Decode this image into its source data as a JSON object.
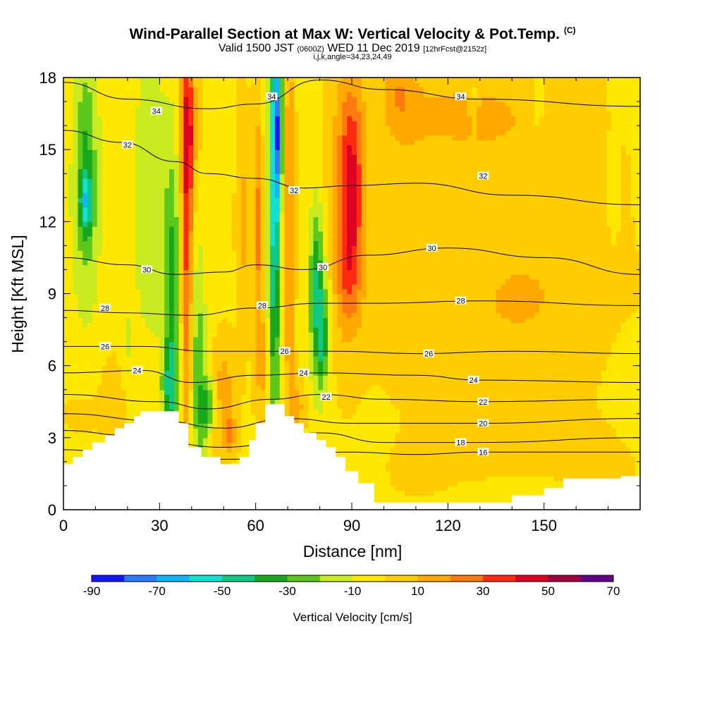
{
  "title": {
    "main": "Wind-Parallel Section at Max W: Vertical Velocity & Pot.Temp.",
    "copyright": "(C)",
    "valid_prefix": "Valid 1500 JST",
    "valid_utc": "(0600Z)",
    "valid_date": "WED 11 Dec 2019",
    "forecast": "[12hrFcst@2152z]",
    "indices": "i,j,k,angle=34,23,24,49"
  },
  "chart_data": {
    "type": "heatmap",
    "xlabel": "Distance [nm]",
    "ylabel": "Height [Kft MSL]",
    "xlim": [
      0,
      180
    ],
    "ylim": [
      0,
      18
    ],
    "x_ticks": [
      0,
      30,
      60,
      90,
      120,
      150
    ],
    "y_ticks": [
      0,
      3,
      6,
      9,
      12,
      15,
      18
    ],
    "grid": false,
    "colorbar": {
      "label": "Vertical Velocity [cm/s]",
      "ticks": [
        -90,
        -70,
        -50,
        -30,
        -10,
        10,
        30,
        50,
        70
      ],
      "boundaries": [
        -90,
        -80,
        -70,
        -60,
        -50,
        -40,
        -30,
        -20,
        -10,
        0,
        10,
        20,
        30,
        40,
        50,
        60,
        70
      ],
      "colors": [
        "#1414ff",
        "#2b7bff",
        "#10b7f5",
        "#12e0d0",
        "#0fc883",
        "#18a81e",
        "#5cc81c",
        "#c8ea1e",
        "#ffe800",
        "#ffcc00",
        "#ffa800",
        "#ff7a10",
        "#ff2a10",
        "#dd0022",
        "#a00040",
        "#660088"
      ]
    },
    "contour_field": "Potential Temperature",
    "contour_levels": [
      16,
      18,
      20,
      22,
      24,
      26,
      28,
      30,
      32,
      34
    ],
    "contour_lines": [
      {
        "level": 34,
        "points": [
          [
            0,
            17.8
          ],
          [
            20,
            17.1
          ],
          [
            45,
            16.7
          ],
          [
            60,
            16.9
          ],
          [
            80,
            17.9
          ],
          [
            100,
            17.5
          ],
          [
            130,
            17.1
          ],
          [
            180,
            16.8
          ]
        ]
      },
      {
        "level": 32,
        "points": [
          [
            0,
            15.8
          ],
          [
            18,
            15.3
          ],
          [
            35,
            14.5
          ],
          [
            45,
            14.0
          ],
          [
            60,
            13.8
          ],
          [
            75,
            13.4
          ],
          [
            90,
            13.5
          ],
          [
            110,
            13.6
          ],
          [
            140,
            13.1
          ],
          [
            180,
            12.7
          ]
        ]
      },
      {
        "level": 30,
        "points": [
          [
            0,
            10.5
          ],
          [
            20,
            10.2
          ],
          [
            35,
            9.8
          ],
          [
            50,
            9.9
          ],
          [
            60,
            10.2
          ],
          [
            75,
            10.0
          ],
          [
            95,
            10.6
          ],
          [
            120,
            10.9
          ],
          [
            150,
            10.5
          ],
          [
            180,
            9.8
          ]
        ]
      },
      {
        "level": 28,
        "points": [
          [
            0,
            8.3
          ],
          [
            20,
            8.2
          ],
          [
            40,
            8.1
          ],
          [
            60,
            8.4
          ],
          [
            80,
            8.6
          ],
          [
            100,
            8.6
          ],
          [
            130,
            8.7
          ],
          [
            180,
            8.5
          ]
        ]
      },
      {
        "level": 26,
        "points": [
          [
            0,
            6.8
          ],
          [
            25,
            6.8
          ],
          [
            45,
            6.6
          ],
          [
            65,
            6.6
          ],
          [
            85,
            6.6
          ],
          [
            110,
            6.5
          ],
          [
            140,
            6.6
          ],
          [
            180,
            6.5
          ]
        ]
      },
      {
        "level": 24,
        "points": [
          [
            0,
            5.7
          ],
          [
            25,
            5.8
          ],
          [
            40,
            5.3
          ],
          [
            60,
            5.6
          ],
          [
            80,
            5.7
          ],
          [
            110,
            5.6
          ],
          [
            130,
            5.4
          ],
          [
            180,
            5.3
          ]
        ]
      },
      {
        "level": 22,
        "points": [
          [
            0,
            4.8
          ],
          [
            30,
            4.5
          ],
          [
            45,
            4.2
          ],
          [
            65,
            4.6
          ],
          [
            80,
            4.8
          ],
          [
            100,
            4.6
          ],
          [
            130,
            4.5
          ],
          [
            180,
            4.6
          ]
        ]
      },
      {
        "level": 20,
        "points": [
          [
            0,
            4.0
          ],
          [
            30,
            3.7
          ],
          [
            50,
            3.4
          ],
          [
            70,
            3.8
          ],
          [
            90,
            3.6
          ],
          [
            110,
            3.6
          ],
          [
            130,
            3.6
          ],
          [
            180,
            3.8
          ]
        ]
      },
      {
        "level": 18,
        "points": [
          [
            0,
            3.3
          ],
          [
            20,
            3.1
          ],
          [
            50,
            2.6
          ],
          [
            80,
            3.2
          ],
          [
            100,
            2.8
          ],
          [
            130,
            2.8
          ],
          [
            180,
            3.0
          ]
        ]
      },
      {
        "level": 16,
        "points": [
          [
            0,
            2.5
          ],
          [
            20,
            2.3
          ],
          [
            50,
            2.1
          ],
          [
            90,
            2.4
          ],
          [
            110,
            2.3
          ],
          [
            130,
            2.4
          ],
          [
            180,
            2.4
          ]
        ]
      }
    ],
    "contour_labels": [
      {
        "text": "34",
        "x": 29,
        "y": 16.6
      },
      {
        "text": "34",
        "x": 65,
        "y": 17.2
      },
      {
        "text": "34",
        "x": 124,
        "y": 17.2
      },
      {
        "text": "32",
        "x": 20,
        "y": 15.2
      },
      {
        "text": "32",
        "x": 72,
        "y": 13.3
      },
      {
        "text": "32",
        "x": 131,
        "y": 13.9
      },
      {
        "text": "30",
        "x": 26,
        "y": 10.0
      },
      {
        "text": "30",
        "x": 81,
        "y": 10.1
      },
      {
        "text": "30",
        "x": 115,
        "y": 10.9
      },
      {
        "text": "28",
        "x": 13,
        "y": 8.4
      },
      {
        "text": "28",
        "x": 62,
        "y": 8.5
      },
      {
        "text": "28",
        "x": 124,
        "y": 8.7
      },
      {
        "text": "26",
        "x": 13,
        "y": 6.8
      },
      {
        "text": "26",
        "x": 69,
        "y": 6.6
      },
      {
        "text": "26",
        "x": 114,
        "y": 6.5
      },
      {
        "text": "24",
        "x": 23,
        "y": 5.8
      },
      {
        "text": "24",
        "x": 75,
        "y": 5.7
      },
      {
        "text": "24",
        "x": 128,
        "y": 5.4
      },
      {
        "text": "22",
        "x": 82,
        "y": 4.7
      },
      {
        "text": "22",
        "x": 131,
        "y": 4.5
      },
      {
        "text": "20",
        "x": 131,
        "y": 3.6
      },
      {
        "text": "18",
        "x": 124,
        "y": 2.8
      },
      {
        "text": "16",
        "x": 131,
        "y": 2.4
      }
    ],
    "terrain_height_kft": [
      [
        0,
        1.9
      ],
      [
        3,
        1.9
      ],
      [
        3,
        2.2
      ],
      [
        6,
        2.2
      ],
      [
        6,
        2.5
      ],
      [
        9,
        2.5
      ],
      [
        9,
        2.8
      ],
      [
        13,
        2.8
      ],
      [
        13,
        3.1
      ],
      [
        16,
        3.1
      ],
      [
        16,
        3.4
      ],
      [
        19,
        3.4
      ],
      [
        19,
        3.6
      ],
      [
        22,
        3.6
      ],
      [
        22,
        3.9
      ],
      [
        24,
        3.9
      ],
      [
        24,
        4.1
      ],
      [
        36,
        4.1
      ],
      [
        36,
        3.6
      ],
      [
        39,
        3.6
      ],
      [
        39,
        2.6
      ],
      [
        43,
        2.6
      ],
      [
        43,
        2.2
      ],
      [
        49,
        2.2
      ],
      [
        49,
        1.9
      ],
      [
        55,
        1.9
      ],
      [
        55,
        2.2
      ],
      [
        58,
        2.2
      ],
      [
        58,
        2.9
      ],
      [
        60,
        2.9
      ],
      [
        60,
        3.6
      ],
      [
        63,
        3.6
      ],
      [
        63,
        4.4
      ],
      [
        69,
        4.4
      ],
      [
        69,
        3.9
      ],
      [
        72,
        3.9
      ],
      [
        72,
        3.6
      ],
      [
        75,
        3.6
      ],
      [
        75,
        3.2
      ],
      [
        79,
        3.2
      ],
      [
        79,
        2.9
      ],
      [
        82,
        2.9
      ],
      [
        82,
        2.6
      ],
      [
        85,
        2.6
      ],
      [
        85,
        2.2
      ],
      [
        88,
        2.2
      ],
      [
        88,
        1.6
      ],
      [
        92,
        1.6
      ],
      [
        92,
        1.1
      ],
      [
        97,
        1.1
      ],
      [
        97,
        0.3
      ],
      [
        110,
        0.3
      ],
      [
        110,
        0.3
      ],
      [
        140,
        0.3
      ],
      [
        140,
        0.6
      ],
      [
        150,
        0.6
      ],
      [
        150,
        0.9
      ],
      [
        156,
        0.9
      ],
      [
        156,
        1.3
      ],
      [
        174,
        1.3
      ],
      [
        174,
        1.4
      ],
      [
        180,
        1.4
      ]
    ],
    "w_field": {
      "background": -2,
      "cells": [
        {
          "x": 7,
          "y": 13,
          "sx": 5,
          "sy": 6,
          "w": -18
        },
        {
          "x": 7,
          "y": 12.8,
          "sx": 2,
          "sy": 1.2,
          "w": -32
        },
        {
          "x": 7,
          "y": 15,
          "sx": 3,
          "sy": 4,
          "w": -14
        },
        {
          "x": 27,
          "y": 13,
          "sx": 6,
          "sy": 7,
          "w": -16
        },
        {
          "x": 34,
          "y": 9,
          "sx": 2.5,
          "sy": 6,
          "w": -30
        },
        {
          "x": 33,
          "y": 5,
          "sx": 2.5,
          "sy": 2,
          "w": -28
        },
        {
          "x": 38.5,
          "y": 11,
          "sx": 1.8,
          "sy": 8,
          "w": 36
        },
        {
          "x": 39,
          "y": 16,
          "sx": 2.5,
          "sy": 3,
          "w": 30
        },
        {
          "x": 42,
          "y": 6,
          "sx": 2.5,
          "sy": 5,
          "w": -24
        },
        {
          "x": 45,
          "y": 4,
          "sx": 2.5,
          "sy": 1.5,
          "w": -30
        },
        {
          "x": 46,
          "y": 3,
          "sx": 2.5,
          "sy": 1,
          "w": 14
        },
        {
          "x": 50,
          "y": 5,
          "sx": 3,
          "sy": 2,
          "w": 18
        },
        {
          "x": 52,
          "y": 3.2,
          "sx": 2,
          "sy": 0.8,
          "w": 22
        },
        {
          "x": 56,
          "y": 12,
          "sx": 2,
          "sy": 5,
          "w": 14
        },
        {
          "x": 61,
          "y": 12,
          "sx": 1.5,
          "sy": 5,
          "w": 26
        },
        {
          "x": 62,
          "y": 6,
          "sx": 2,
          "sy": 3,
          "w": 14
        },
        {
          "x": 66,
          "y": 12,
          "sx": 1.2,
          "sy": 9,
          "w": -40
        },
        {
          "x": 67,
          "y": 16,
          "sx": 1.5,
          "sy": 3,
          "w": -48
        },
        {
          "x": 65,
          "y": 13,
          "sx": 2.5,
          "sy": 8,
          "w": -22
        },
        {
          "x": 70.5,
          "y": 12,
          "sx": 1.5,
          "sy": 8,
          "w": 26
        },
        {
          "x": 79,
          "y": 9,
          "sx": 2,
          "sy": 3.5,
          "w": -30
        },
        {
          "x": 81,
          "y": 7,
          "sx": 1.5,
          "sy": 2,
          "w": -28
        },
        {
          "x": 80,
          "y": 9,
          "sx": 4,
          "sy": 4,
          "w": -14
        },
        {
          "x": 73,
          "y": 4.3,
          "sx": 2.5,
          "sy": 1.2,
          "w": 16
        },
        {
          "x": 88,
          "y": 13,
          "sx": 6,
          "sy": 6,
          "w": 18
        },
        {
          "x": 90,
          "y": 14,
          "sx": 3.5,
          "sy": 3.5,
          "w": 30
        },
        {
          "x": 89,
          "y": 10,
          "sx": 4,
          "sy": 2.5,
          "w": 20
        },
        {
          "x": 105,
          "y": 13,
          "sx": 10,
          "sy": 6,
          "w": 8
        },
        {
          "x": 140,
          "y": 13,
          "sx": 25,
          "sy": 6,
          "w": 8
        },
        {
          "x": 160,
          "y": 14,
          "sx": 15,
          "sy": 5,
          "w": 4
        },
        {
          "x": 140,
          "y": 8,
          "sx": 35,
          "sy": 3,
          "w": 8
        },
        {
          "x": 123,
          "y": 16.5,
          "sx": 20,
          "sy": 1.5,
          "w": 12
        },
        {
          "x": 105,
          "y": 17.5,
          "sx": 5,
          "sy": 1.5,
          "w": 14
        },
        {
          "x": 148,
          "y": 17,
          "sx": 2,
          "sy": 1.5,
          "w": -12
        },
        {
          "x": 128,
          "y": 17,
          "sx": 1.5,
          "sy": 1,
          "w": -12
        },
        {
          "x": 104,
          "y": 10,
          "sx": 1.5,
          "sy": 2.5,
          "w": -4
        },
        {
          "x": 171,
          "y": 13,
          "sx": 3,
          "sy": 4,
          "w": -3
        },
        {
          "x": 176,
          "y": 4.5,
          "sx": 6,
          "sy": 3,
          "w": -6
        },
        {
          "x": 170,
          "y": 2,
          "sx": 10,
          "sy": 1.5,
          "w": 8
        },
        {
          "x": 140,
          "y": 2.7,
          "sx": 30,
          "sy": 1.5,
          "w": 4
        },
        {
          "x": 110,
          "y": 1.2,
          "sx": 15,
          "sy": 1.5,
          "w": 2
        },
        {
          "x": 16,
          "y": 5,
          "sx": 12,
          "sy": 2.5,
          "w": 4
        },
        {
          "x": 20,
          "y": 7,
          "sx": 2,
          "sy": 1.5,
          "w": -10
        },
        {
          "x": 5,
          "y": 4,
          "sx": 5,
          "sy": 1,
          "w": 4
        }
      ]
    }
  }
}
